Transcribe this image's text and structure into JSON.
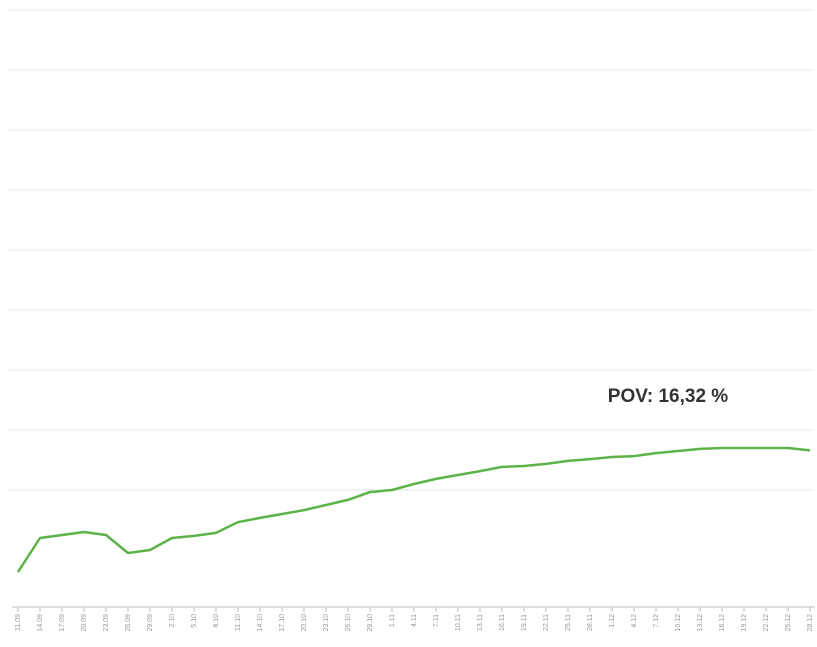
{
  "chart_data": {
    "type": "line",
    "annotation": "POV: 16,32 %",
    "categories": [
      "11.09",
      "14.09",
      "17.09",
      "20.09",
      "23.09",
      "26.09",
      "29.09",
      "2.10",
      "5.10",
      "8.10",
      "11.10",
      "14.10",
      "17.10",
      "20.10",
      "23.10",
      "26.10",
      "29.10",
      "1.11",
      "4.11",
      "7.11",
      "10.11",
      "13.11",
      "16.11",
      "19.11",
      "22.11",
      "25.11",
      "28.11",
      "1.12",
      "4.12",
      "7.12",
      "10.12",
      "13.12",
      "16.12",
      "19.12",
      "22.12",
      "25.12",
      "28.12"
    ],
    "values": [
      12.27,
      13.4,
      13.5,
      13.6,
      13.5,
      12.9,
      13.0,
      13.4,
      13.47,
      13.57,
      13.93,
      14.07,
      14.2,
      14.33,
      14.5,
      14.67,
      14.93,
      15.0,
      15.2,
      15.37,
      15.5,
      15.63,
      15.77,
      15.8,
      15.87,
      15.97,
      16.03,
      16.1,
      16.13,
      16.23,
      16.3,
      16.37,
      16.4,
      16.4,
      16.4,
      16.4,
      16.32
    ],
    "color": "#5db347",
    "ylim": [
      11,
      31
    ],
    "yticks": [
      15,
      17,
      19,
      21,
      23,
      25,
      27,
      29,
      31
    ],
    "grid": true
  }
}
